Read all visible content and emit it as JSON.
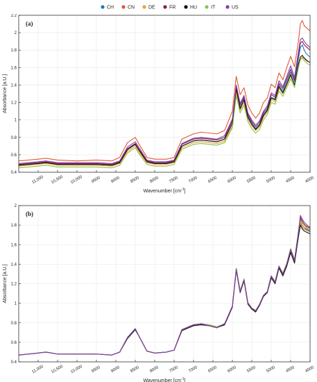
{
  "legend": {
    "items": [
      {
        "label": "CH",
        "color": "#1f77b4"
      },
      {
        "label": "CN",
        "color": "#e4572e"
      },
      {
        "label": "DE",
        "color": "#f0a030"
      },
      {
        "label": "FR",
        "color": "#8e1a4b"
      },
      {
        "label": "HU",
        "color": "#111111"
      },
      {
        "label": "IT",
        "color": "#8bc34a"
      },
      {
        "label": "US",
        "color": "#7e3fb0"
      }
    ]
  },
  "chart_data": [
    {
      "type": "line",
      "panel_label": "(a)",
      "xlabel": "Wavenumber [cm",
      "xlabel_sup": "-1",
      "xlabel_end": "]",
      "ylabel": "Absorbance [a.U.]",
      "x_reversed": true,
      "xlim": [
        11500,
        4000
      ],
      "ylim": [
        0.4,
        2.2
      ],
      "x_ticks": [
        11000,
        10500,
        10000,
        9500,
        9000,
        8500,
        8000,
        7500,
        7000,
        6500,
        6000,
        5500,
        5000,
        4500,
        4000
      ],
      "x_tick_labels": [
        "11,000",
        "10,500",
        "10,000",
        "9500",
        "9000",
        "8500",
        "8000",
        "7500",
        "7000",
        "6500",
        "6000",
        "5500",
        "5000",
        "4500",
        "4000"
      ],
      "y_ticks": [
        0.4,
        0.6,
        0.8,
        1.0,
        1.2,
        1.4,
        1.6,
        1.8,
        2.0,
        2.2
      ],
      "y_tick_labels": [
        "0.4",
        "0.6",
        "0.8",
        "1",
        "1.2",
        "1.4",
        "1.6",
        "1.8",
        "2",
        "2.2"
      ],
      "grid": true,
      "x": [
        11500,
        11000,
        10800,
        10500,
        10000,
        9500,
        9100,
        8900,
        8700,
        8500,
        8400,
        8200,
        8000,
        7700,
        7500,
        7300,
        7000,
        6800,
        6600,
        6400,
        6200,
        6000,
        5900,
        5800,
        5700,
        5600,
        5500,
        5400,
        5300,
        5200,
        5100,
        5000,
        4900,
        4800,
        4700,
        4600,
        4500,
        4400,
        4300,
        4250,
        4200,
        4150,
        4100,
        4050,
        4000
      ],
      "series": [
        {
          "name": "CH",
          "color": "#1f77b4",
          "values": [
            0.48,
            0.5,
            0.51,
            0.49,
            0.49,
            0.49,
            0.48,
            0.51,
            0.66,
            0.72,
            0.65,
            0.52,
            0.5,
            0.5,
            0.52,
            0.7,
            0.76,
            0.77,
            0.76,
            0.75,
            0.78,
            0.96,
            1.36,
            1.14,
            1.24,
            1.04,
            0.96,
            0.9,
            0.95,
            1.06,
            1.12,
            1.26,
            1.24,
            1.4,
            1.33,
            1.44,
            1.55,
            1.44,
            1.7,
            1.83,
            1.86,
            1.8,
            1.76,
            1.74,
            1.72
          ]
        },
        {
          "name": "CN",
          "color": "#e4572e",
          "values": [
            0.53,
            0.55,
            0.56,
            0.54,
            0.53,
            0.54,
            0.53,
            0.57,
            0.74,
            0.8,
            0.72,
            0.57,
            0.55,
            0.55,
            0.57,
            0.78,
            0.84,
            0.86,
            0.85,
            0.84,
            0.88,
            1.1,
            1.5,
            1.29,
            1.37,
            1.17,
            1.08,
            1.02,
            1.08,
            1.2,
            1.25,
            1.41,
            1.37,
            1.54,
            1.46,
            1.6,
            1.73,
            1.61,
            1.9,
            2.1,
            2.14,
            2.08,
            2.06,
            2.04,
            2.02
          ]
        },
        {
          "name": "DE",
          "color": "#f0a030",
          "values": [
            0.47,
            0.49,
            0.5,
            0.48,
            0.48,
            0.48,
            0.47,
            0.5,
            0.64,
            0.7,
            0.63,
            0.51,
            0.49,
            0.49,
            0.51,
            0.68,
            0.74,
            0.75,
            0.74,
            0.73,
            0.76,
            0.93,
            1.32,
            1.11,
            1.2,
            1.01,
            0.93,
            0.88,
            0.92,
            1.03,
            1.09,
            1.23,
            1.21,
            1.36,
            1.3,
            1.4,
            1.5,
            1.4,
            1.62,
            1.7,
            1.72,
            1.7,
            1.68,
            1.67,
            1.66
          ]
        },
        {
          "name": "FR",
          "color": "#8e1a4b",
          "values": [
            0.49,
            0.51,
            0.52,
            0.5,
            0.5,
            0.5,
            0.49,
            0.52,
            0.67,
            0.73,
            0.66,
            0.53,
            0.51,
            0.51,
            0.53,
            0.72,
            0.78,
            0.79,
            0.78,
            0.77,
            0.8,
            0.99,
            1.38,
            1.17,
            1.26,
            1.06,
            0.98,
            0.92,
            0.97,
            1.08,
            1.14,
            1.29,
            1.26,
            1.42,
            1.36,
            1.47,
            1.58,
            1.46,
            1.74,
            1.88,
            1.9,
            1.86,
            1.84,
            1.82,
            1.8
          ]
        },
        {
          "name": "HU",
          "color": "#111111",
          "values": [
            0.48,
            0.5,
            0.51,
            0.49,
            0.49,
            0.49,
            0.48,
            0.51,
            0.66,
            0.72,
            0.65,
            0.52,
            0.5,
            0.5,
            0.52,
            0.7,
            0.76,
            0.77,
            0.76,
            0.75,
            0.78,
            0.96,
            1.36,
            1.13,
            1.23,
            1.03,
            0.95,
            0.89,
            0.94,
            1.05,
            1.11,
            1.25,
            1.23,
            1.38,
            1.31,
            1.41,
            1.52,
            1.4,
            1.64,
            1.72,
            1.74,
            1.71,
            1.69,
            1.67,
            1.66
          ]
        },
        {
          "name": "IT",
          "color": "#8bc34a",
          "values": [
            0.45,
            0.47,
            0.48,
            0.46,
            0.46,
            0.46,
            0.45,
            0.48,
            0.62,
            0.68,
            0.61,
            0.49,
            0.47,
            0.47,
            0.49,
            0.66,
            0.72,
            0.73,
            0.72,
            0.71,
            0.74,
            0.91,
            1.28,
            1.08,
            1.17,
            0.98,
            0.9,
            0.85,
            0.89,
            1.0,
            1.06,
            1.2,
            1.18,
            1.33,
            1.27,
            1.37,
            1.47,
            1.37,
            1.6,
            1.69,
            1.71,
            1.68,
            1.66,
            1.64,
            1.63
          ]
        },
        {
          "name": "US",
          "color": "#7e3fb0",
          "values": [
            0.5,
            0.52,
            0.53,
            0.51,
            0.51,
            0.51,
            0.5,
            0.53,
            0.69,
            0.75,
            0.68,
            0.54,
            0.52,
            0.52,
            0.54,
            0.73,
            0.79,
            0.8,
            0.79,
            0.78,
            0.82,
            1.01,
            1.4,
            1.19,
            1.28,
            1.08,
            1.0,
            0.94,
            0.99,
            1.1,
            1.16,
            1.31,
            1.28,
            1.45,
            1.38,
            1.5,
            1.62,
            1.49,
            1.78,
            1.92,
            1.94,
            1.9,
            1.87,
            1.85,
            1.83
          ]
        }
      ]
    },
    {
      "type": "line",
      "panel_label": "(b)",
      "xlabel": "Wavenumber [cm",
      "xlabel_sup": "-1",
      "xlabel_end": "]",
      "ylabel": "Absorbance [a.U.]",
      "x_reversed": true,
      "xlim": [
        11500,
        4000
      ],
      "ylim": [
        0.4,
        2.0
      ],
      "x_ticks": [
        11000,
        10500,
        10000,
        9500,
        9000,
        8500,
        8000,
        7500,
        7000,
        6500,
        6000,
        5500,
        5000,
        4500,
        4000
      ],
      "x_tick_labels": [
        "11,000",
        "10,500",
        "10,000",
        "9500",
        "9000",
        "8500",
        "8000",
        "7500",
        "7000",
        "6500",
        "6000",
        "5500",
        "5000",
        "4500",
        "4000"
      ],
      "y_ticks": [
        0.4,
        0.6,
        0.8,
        1.0,
        1.2,
        1.4,
        1.6,
        1.8,
        2.0
      ],
      "y_tick_labels": [
        "0.4",
        "0.6",
        "0.8",
        "1",
        "1.2",
        "1.4",
        "1.6",
        "1.8",
        "2"
      ],
      "grid": true,
      "x": [
        11500,
        11000,
        10800,
        10500,
        10000,
        9500,
        9100,
        8900,
        8700,
        8500,
        8400,
        8200,
        8000,
        7700,
        7500,
        7300,
        7000,
        6800,
        6600,
        6400,
        6200,
        6000,
        5900,
        5800,
        5700,
        5600,
        5500,
        5400,
        5300,
        5200,
        5100,
        5000,
        4900,
        4800,
        4700,
        4600,
        4500,
        4400,
        4300,
        4250,
        4200,
        4150,
        4100,
        4050,
        4000
      ],
      "series": [
        {
          "name": "CH",
          "color": "#1f77b4",
          "values": [
            0.47,
            0.49,
            0.5,
            0.48,
            0.48,
            0.48,
            0.47,
            0.5,
            0.65,
            0.74,
            0.66,
            0.51,
            0.49,
            0.5,
            0.52,
            0.73,
            0.78,
            0.79,
            0.77,
            0.75,
            0.79,
            0.97,
            1.35,
            1.12,
            1.24,
            1.0,
            0.95,
            0.92,
            0.99,
            1.08,
            1.12,
            1.28,
            1.22,
            1.38,
            1.3,
            1.4,
            1.55,
            1.44,
            1.72,
            1.86,
            1.8,
            1.78,
            1.76,
            1.75,
            1.74
          ]
        },
        {
          "name": "CN",
          "color": "#e4572e",
          "values": [
            0.47,
            0.49,
            0.5,
            0.48,
            0.48,
            0.48,
            0.47,
            0.5,
            0.64,
            0.73,
            0.66,
            0.51,
            0.49,
            0.5,
            0.52,
            0.72,
            0.77,
            0.78,
            0.77,
            0.75,
            0.78,
            0.96,
            1.34,
            1.11,
            1.23,
            1.0,
            0.94,
            0.92,
            0.98,
            1.07,
            1.11,
            1.27,
            1.21,
            1.37,
            1.29,
            1.39,
            1.53,
            1.42,
            1.7,
            1.82,
            1.78,
            1.76,
            1.75,
            1.74,
            1.73
          ]
        },
        {
          "name": "DE",
          "color": "#f0a030",
          "values": [
            0.47,
            0.49,
            0.5,
            0.48,
            0.48,
            0.48,
            0.47,
            0.5,
            0.65,
            0.74,
            0.66,
            0.51,
            0.49,
            0.5,
            0.52,
            0.73,
            0.78,
            0.79,
            0.78,
            0.76,
            0.79,
            0.97,
            1.36,
            1.13,
            1.25,
            1.01,
            0.95,
            0.93,
            0.99,
            1.08,
            1.12,
            1.28,
            1.22,
            1.38,
            1.31,
            1.41,
            1.56,
            1.45,
            1.73,
            1.87,
            1.82,
            1.8,
            1.78,
            1.77,
            1.76
          ]
        },
        {
          "name": "FR",
          "color": "#8e1a4b",
          "values": [
            0.47,
            0.49,
            0.5,
            0.48,
            0.48,
            0.48,
            0.47,
            0.5,
            0.65,
            0.74,
            0.66,
            0.51,
            0.49,
            0.5,
            0.52,
            0.73,
            0.78,
            0.79,
            0.77,
            0.75,
            0.79,
            0.97,
            1.35,
            1.12,
            1.24,
            1.0,
            0.95,
            0.92,
            0.99,
            1.08,
            1.12,
            1.28,
            1.22,
            1.38,
            1.3,
            1.4,
            1.55,
            1.44,
            1.72,
            1.88,
            1.84,
            1.81,
            1.79,
            1.78,
            1.77
          ]
        },
        {
          "name": "HU",
          "color": "#111111",
          "values": [
            0.47,
            0.49,
            0.5,
            0.48,
            0.48,
            0.48,
            0.47,
            0.5,
            0.64,
            0.73,
            0.66,
            0.51,
            0.49,
            0.5,
            0.52,
            0.72,
            0.77,
            0.78,
            0.77,
            0.75,
            0.78,
            0.96,
            1.34,
            1.11,
            1.23,
            0.99,
            0.94,
            0.91,
            0.98,
            1.07,
            1.11,
            1.26,
            1.2,
            1.36,
            1.28,
            1.38,
            1.52,
            1.41,
            1.68,
            1.8,
            1.76,
            1.74,
            1.73,
            1.72,
            1.71
          ]
        },
        {
          "name": "IT",
          "color": "#8bc34a",
          "values": [
            0.47,
            0.49,
            0.5,
            0.48,
            0.48,
            0.48,
            0.47,
            0.5,
            0.65,
            0.74,
            0.66,
            0.51,
            0.49,
            0.5,
            0.52,
            0.73,
            0.78,
            0.79,
            0.78,
            0.76,
            0.79,
            0.97,
            1.36,
            1.13,
            1.25,
            1.01,
            0.95,
            0.93,
            0.99,
            1.08,
            1.12,
            1.28,
            1.22,
            1.38,
            1.31,
            1.41,
            1.56,
            1.45,
            1.74,
            1.84,
            1.8,
            1.78,
            1.77,
            1.76,
            1.75
          ]
        },
        {
          "name": "US",
          "color": "#7e3fb0",
          "values": [
            0.47,
            0.49,
            0.5,
            0.48,
            0.48,
            0.48,
            0.47,
            0.5,
            0.65,
            0.74,
            0.66,
            0.51,
            0.49,
            0.5,
            0.52,
            0.73,
            0.78,
            0.79,
            0.77,
            0.75,
            0.79,
            0.97,
            1.35,
            1.12,
            1.24,
            1.0,
            0.95,
            0.92,
            0.99,
            1.08,
            1.12,
            1.28,
            1.22,
            1.38,
            1.3,
            1.4,
            1.55,
            1.44,
            1.72,
            1.9,
            1.86,
            1.83,
            1.81,
            1.79,
            1.78
          ]
        }
      ]
    }
  ]
}
